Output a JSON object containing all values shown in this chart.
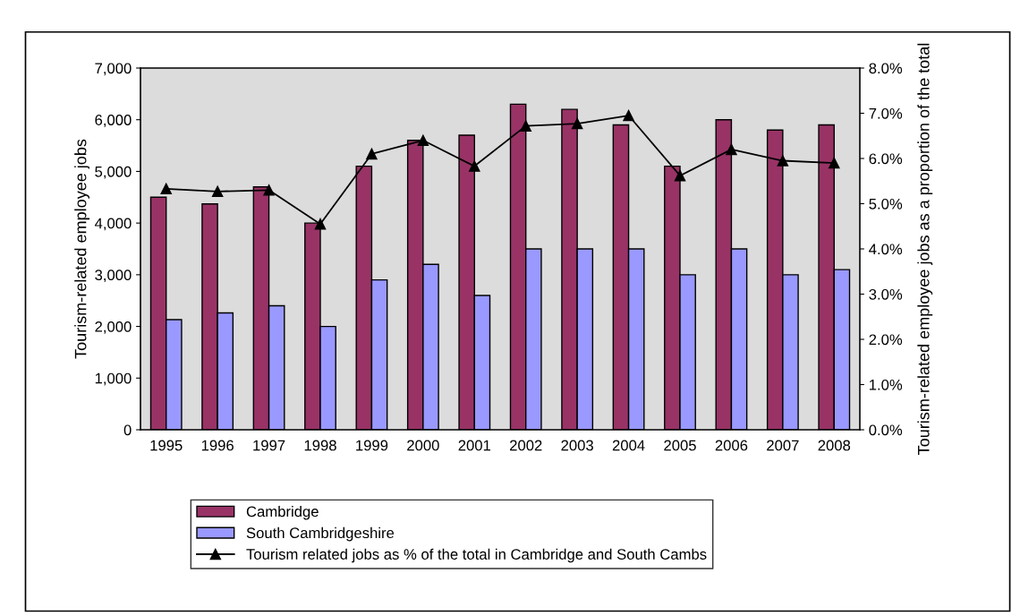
{
  "chart_data": {
    "type": "bar",
    "categories": [
      "1995",
      "1996",
      "1997",
      "1998",
      "1999",
      "2000",
      "2001",
      "2002",
      "2003",
      "2004",
      "2005",
      "2006",
      "2007",
      "2008"
    ],
    "ylabel": "Tourism-related employee jobs",
    "y2label": "Tourism-related employee jobs as a proportion of the total",
    "series": [
      {
        "name": "Cambridge",
        "color": "#993366",
        "values": [
          4500,
          4370,
          4700,
          4000,
          5100,
          5600,
          5700,
          6300,
          6200,
          5900,
          5100,
          6000,
          5800,
          5900
        ]
      },
      {
        "name": "South Cambridgeshire",
        "color": "#9999ff",
        "values": [
          2130,
          2260,
          2400,
          2000,
          2900,
          3200,
          2600,
          3500,
          3500,
          3500,
          3000,
          3500,
          3000,
          3100
        ]
      },
      {
        "name": "Tourism related jobs as % of the total in Cambridge and South Cambs",
        "type": "line",
        "axis": "y2",
        "color": "#000000",
        "marker": "triangle",
        "line_style": "solid",
        "values": [
          5.33,
          5.27,
          5.3,
          4.55,
          6.1,
          6.4,
          5.83,
          6.72,
          6.77,
          6.95,
          5.62,
          6.2,
          5.95,
          5.9
        ]
      }
    ],
    "ylim": [
      0,
      7000
    ],
    "yticks": [
      {
        "value": 0,
        "label": "0"
      },
      {
        "value": 1000,
        "label": "1,000"
      },
      {
        "value": 2000,
        "label": "2,000"
      },
      {
        "value": 3000,
        "label": "3,000"
      },
      {
        "value": 4000,
        "label": "4,000"
      },
      {
        "value": 5000,
        "label": "5,000"
      },
      {
        "value": 6000,
        "label": "6,000"
      },
      {
        "value": 7000,
        "label": "7,000"
      }
    ],
    "y2lim": [
      0,
      8
    ],
    "y2ticks": [
      {
        "value": 0,
        "label": "0.0%"
      },
      {
        "value": 1,
        "label": "1.0%"
      },
      {
        "value": 2,
        "label": "2.0%"
      },
      {
        "value": 3,
        "label": "3.0%"
      },
      {
        "value": 4,
        "label": "4.0%"
      },
      {
        "value": 5,
        "label": "5.0%"
      },
      {
        "value": 6,
        "label": "6.0%"
      },
      {
        "value": 7,
        "label": "7.0%"
      },
      {
        "value": 8,
        "label": "8.0%"
      }
    ],
    "grid": false,
    "legend": "bottom"
  }
}
